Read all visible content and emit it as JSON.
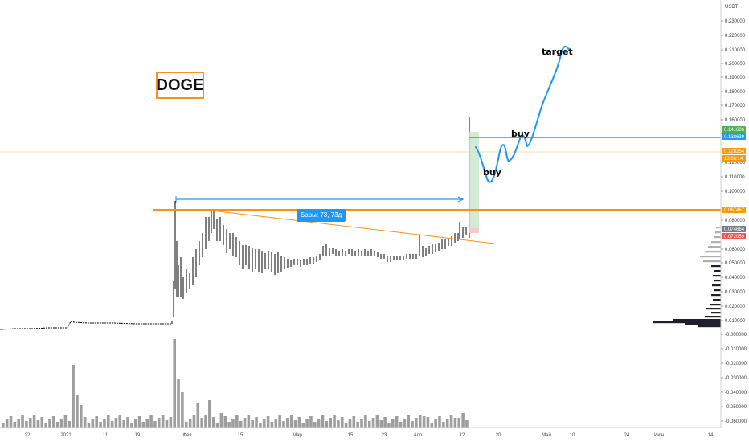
{
  "symbol_label": "DOGE",
  "annotations": {
    "target": "target",
    "buy_upper": "buy",
    "buy_lower": "buy",
    "bars_range": "Бары: 73, 73д"
  },
  "axis": {
    "unit": "USDT",
    "price_ticks": [
      "0.230000",
      "0.220000",
      "0.210000",
      "0.200000",
      "0.190000",
      "0.180000",
      "0.170000",
      "0.160000",
      "0.150000",
      "0.120000",
      "0.110000",
      "0.100000",
      "0.080000",
      "0.060000",
      "0.050000",
      "0.040000",
      "0.030000",
      "0.020000",
      "0.010000",
      "-0.000000",
      "-0.010000",
      "-0.020000",
      "-0.030000",
      "-0.040000",
      "-0.050000",
      "-0.060000"
    ],
    "date_ticks": [
      "22",
      "2021",
      "11",
      "19",
      "Фев",
      "15",
      "Мар",
      "15",
      "23",
      "Апр",
      "12",
      "20",
      "Май",
      "10",
      "24",
      "Июн",
      "14"
    ]
  },
  "price_tags": [
    {
      "value": "0.141606",
      "color": "#4caf50"
    },
    {
      "value": "0.138639",
      "color": "#2196f3"
    },
    {
      "value": "0.128254",
      "color": "#ff9800"
    },
    {
      "value": "13:36:14",
      "color": "#ff9800"
    },
    {
      "value": "0.087467",
      "color": "#ff9800"
    },
    {
      "value": "0.074664",
      "color": "#787b86"
    },
    {
      "value": "0.072059",
      "color": "#ef5350"
    }
  ],
  "colors": {
    "orange": "#f7931a",
    "blue": "#2196f3",
    "green_zone": "#c8e6c9",
    "candle": "#000000",
    "volume": "#9e9e9e",
    "profile": "#1f1f2e"
  },
  "chart_data": {
    "type": "line",
    "title": "DOGE",
    "ylabel": "USDT",
    "ylim": [
      -0.06,
      0.23
    ],
    "x": [
      "22",
      "2021",
      "11",
      "19",
      "Фев",
      "15",
      "Мар",
      "15",
      "23",
      "Апр",
      "12",
      "20"
    ],
    "series": [
      {
        "values": [
          0.0047,
          0.0088,
          0.009,
          0.0095,
          0.065,
          0.06,
          0.05,
          0.052,
          0.055,
          0.063,
          0.083,
          0.135
        ]
      }
    ]
  }
}
